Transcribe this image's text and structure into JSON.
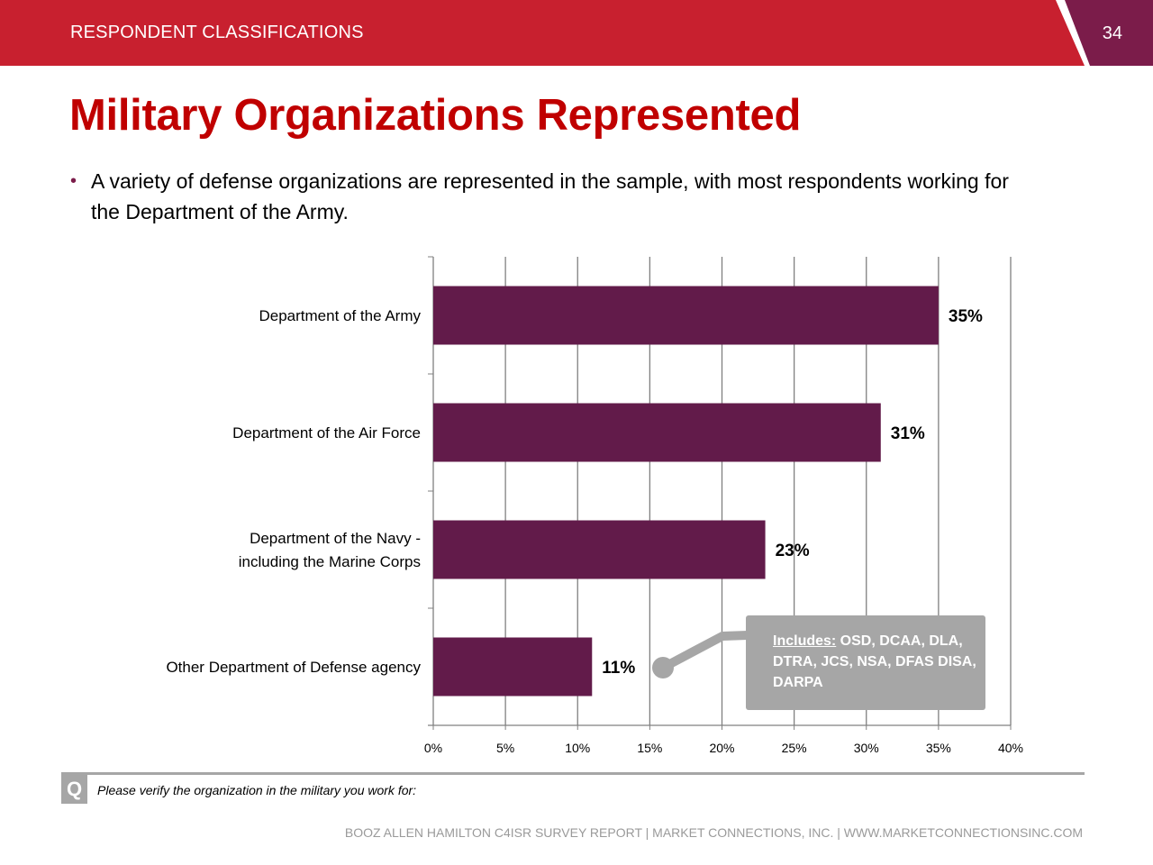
{
  "header": {
    "section": "RESPONDENT CLASSIFICATIONS",
    "page_number": "34",
    "bar_color": "#c8202f",
    "tab_color": "#7b1c4a"
  },
  "title": "Military Organizations Represented",
  "bullet": "A variety of defense organizations are represented in the sample, with most respondents working for the Department of the Army.",
  "chart_data": {
    "type": "bar",
    "orientation": "horizontal",
    "categories": [
      "Department of the Army",
      "Department of the Air Force",
      "Department of the Navy  -\nincluding the Marine Corps",
      "Other Department of Defense agency"
    ],
    "values": [
      35,
      31,
      23,
      11
    ],
    "value_labels": [
      "35%",
      "31%",
      "23%",
      "11%"
    ],
    "xlim": [
      0,
      40
    ],
    "x_ticks": [
      "0%",
      "5%",
      "10%",
      "15%",
      "20%",
      "25%",
      "30%",
      "35%",
      "40%"
    ],
    "bar_color": "#621b4a",
    "grid": "vertical",
    "legend": "none"
  },
  "callout": {
    "prefix": "Includes:",
    "text": " OSD, DCAA, DLA, DTRA,  JCS, NSA,  DFAS DISA, DARPA",
    "color": "#a6a6a6"
  },
  "question": {
    "badge": "Q",
    "text": "Please verify the organization in the military you work for:"
  },
  "footer": "BOOZ ALLEN HAMILTON C4ISR SURVEY REPORT   |   MARKET CONNECTIONS, INC.  |  WWW.MARKETCONNECTIONSINC.COM"
}
